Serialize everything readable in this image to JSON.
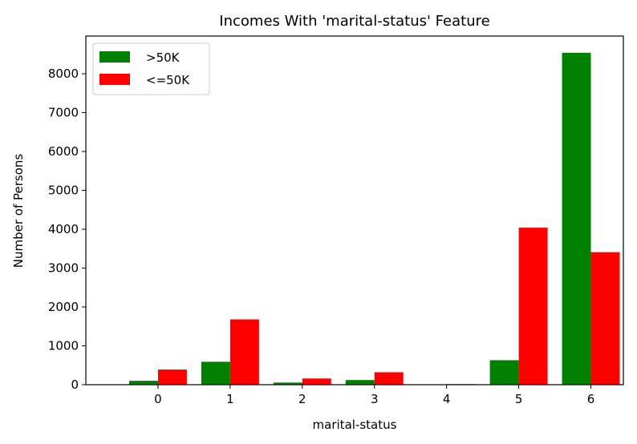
{
  "chart_data": {
    "type": "bar",
    "title": "Incomes With 'marital-status' Feature",
    "xlabel": "marital-status",
    "ylabel": "Number of Persons",
    "categories": [
      "0",
      "1",
      "2",
      "3",
      "4",
      "5",
      "6"
    ],
    "series": [
      {
        "name": ">50K",
        "color": "#008000",
        "values": [
          100,
          590,
          55,
          120,
          10,
          630,
          8540
        ]
      },
      {
        "name": "<=50K",
        "color": "#ff0000",
        "values": [
          390,
          1680,
          160,
          320,
          15,
          4040,
          3410
        ]
      }
    ],
    "yticks": [
      0,
      1000,
      2000,
      3000,
      4000,
      5000,
      6000,
      7000,
      8000
    ],
    "ylim": [
      0,
      8970
    ],
    "legend": "top-left",
    "grid": false
  }
}
